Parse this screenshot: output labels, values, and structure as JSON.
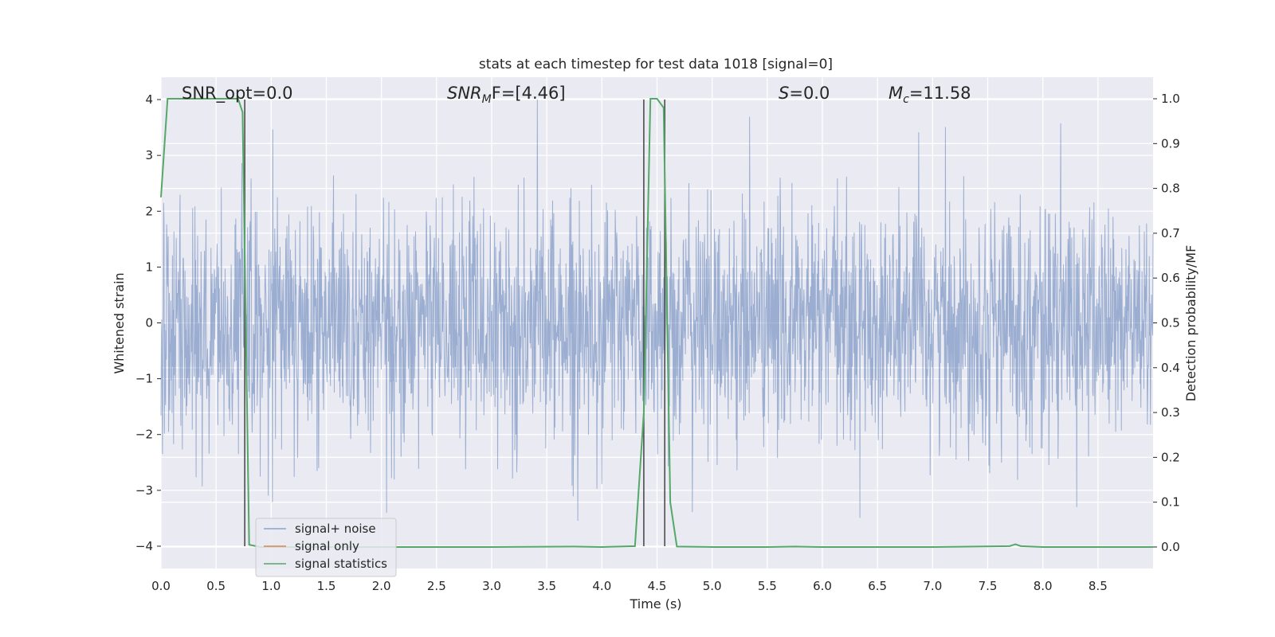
{
  "chart_data": {
    "type": "line",
    "title": "stats at each timestep for test data 1018 [signal=0]",
    "xlabel": "Time (s)",
    "ylabel": "Whitened strain",
    "ylabel_right": "Detection probability/MF",
    "xlim": [
      0,
      9
    ],
    "ylim": [
      -4.4,
      4.4
    ],
    "ylim_right": [
      -0.048,
      1.048
    ],
    "x_ticks": [
      "0.0",
      "0.5",
      "1.0",
      "1.5",
      "2.0",
      "2.5",
      "3.0",
      "3.5",
      "4.0",
      "4.5",
      "5.0",
      "5.5",
      "6.0",
      "6.5",
      "7.0",
      "7.5",
      "8.0",
      "8.5"
    ],
    "y_ticks": [
      "4",
      "3",
      "2",
      "1",
      "0",
      "−1",
      "−2",
      "−3",
      "−4"
    ],
    "y_ticks_right": [
      "1.0",
      "0.9",
      "0.8",
      "0.7",
      "0.6",
      "0.5",
      "0.4",
      "0.3",
      "0.2",
      "0.1",
      "0.0"
    ],
    "grid": true,
    "legend_position": "lower-left",
    "annotations": {
      "snr_opt": "SNR_opt=0.0",
      "snr_mf_name": "SNR",
      "snr_mf_sub": "M",
      "snr_mf_rest": "F=[4.46]",
      "s_name": "S",
      "s_rest": "=0.0",
      "mc_name": "M",
      "mc_sub": "c",
      "mc_rest": "=11.58"
    },
    "vertical_lines_x": [
      0.76,
      4.38,
      4.57
    ],
    "series": [
      {
        "name": "signal+ noise",
        "axis": "left",
        "color": "#4c72b0",
        "description_of_values": "whitened noise strain, approx. Gaussian, peaks between about -3.6 and 4.0 over 0-9 s"
      },
      {
        "name": "signal only",
        "axis": "left",
        "color": "#dd8452",
        "x": [],
        "y": []
      },
      {
        "name": "signal statistics",
        "axis": "right",
        "color": "#55a868",
        "x": [
          0.0,
          0.06,
          0.12,
          0.2,
          0.4,
          0.6,
          0.7,
          0.74,
          0.8,
          0.9,
          1.0,
          2.0,
          3.0,
          3.75,
          4.0,
          4.3,
          4.38,
          4.44,
          4.5,
          4.56,
          4.62,
          4.68,
          5.0,
          5.5,
          5.75,
          6.0,
          7.0,
          7.7,
          7.75,
          7.8,
          8.0,
          8.5,
          9.0
        ],
        "y": [
          0.78,
          1.0,
          1.0,
          1.0,
          1.0,
          1.0,
          1.0,
          0.97,
          0.005,
          0.0,
          0.0,
          0.0,
          0.0,
          0.001,
          0.0,
          0.002,
          0.3,
          1.0,
          1.0,
          0.98,
          0.1,
          0.001,
          0.0,
          0.0,
          0.001,
          0.0,
          0.0,
          0.002,
          0.006,
          0.002,
          0.0,
          0.0,
          0.0
        ]
      }
    ]
  },
  "colors": {
    "plot_background": "#eaeaf2",
    "grid": "#ffffff",
    "vertical_line": "#4d4d4d"
  }
}
